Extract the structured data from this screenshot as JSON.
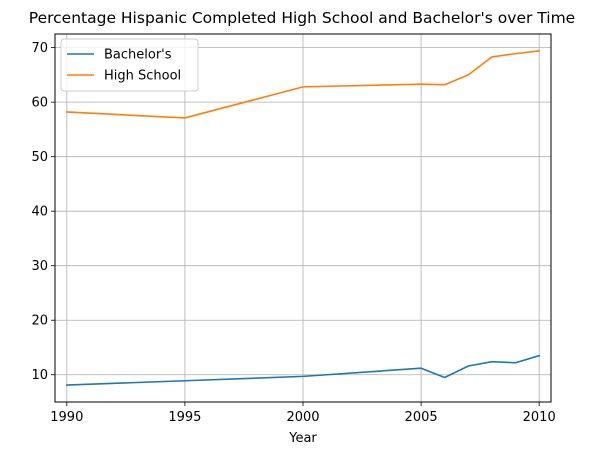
{
  "chart_data": {
    "type": "line",
    "title": "Percentage Hispanic Completed High School and Bachelor's over Time",
    "xlabel": "Year",
    "ylabel": "",
    "xlim": [
      1989.5,
      2010.5
    ],
    "ylim": [
      5,
      72.5
    ],
    "xticks": [
      1990,
      1995,
      2000,
      2005,
      2010
    ],
    "yticks": [
      10,
      20,
      30,
      40,
      50,
      60,
      70
    ],
    "grid": true,
    "legend_position": "top-left",
    "series": [
      {
        "name": "Bachelor's",
        "color": "#1f77b4",
        "x": [
          1990,
          1995,
          2000,
          2005,
          2006,
          2007,
          2008,
          2009,
          2010
        ],
        "y": [
          8.1,
          8.9,
          9.7,
          11.2,
          9.5,
          11.6,
          12.4,
          12.2,
          13.5
        ]
      },
      {
        "name": "High School",
        "color": "#ff7f0e",
        "x": [
          1990,
          1995,
          2000,
          2005,
          2006,
          2007,
          2008,
          2009,
          2010
        ],
        "y": [
          58.2,
          57.1,
          62.8,
          63.3,
          63.2,
          65.0,
          68.3,
          68.9,
          69.4
        ]
      }
    ]
  }
}
